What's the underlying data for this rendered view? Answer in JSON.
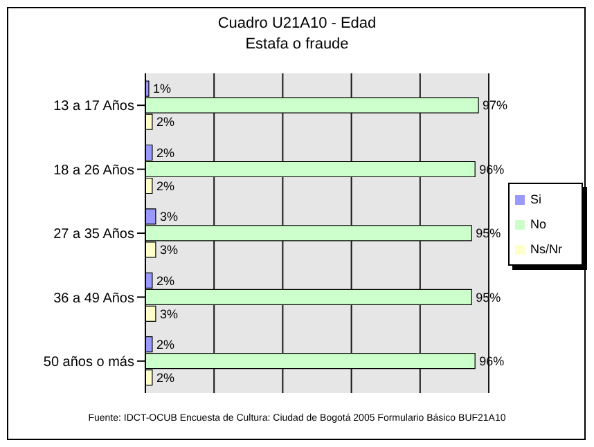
{
  "chart_data": {
    "type": "bar",
    "orientation": "horizontal",
    "title": "Cuadro U21A10 - Edad",
    "subtitle": "Estafa o fraude",
    "categories": [
      "13 a 17 Años",
      "18 a 26 Años",
      "27 a 35 Años",
      "36 a 49 Años",
      "50 años o más"
    ],
    "series": [
      {
        "name": "Si",
        "color": "#9999ff",
        "values": [
          1,
          2,
          3,
          2,
          2
        ],
        "value_labels": [
          "1%",
          "2%",
          "3%",
          "2%",
          "2%"
        ]
      },
      {
        "name": "No",
        "color": "#ccffcc",
        "values": [
          97,
          96,
          95,
          95,
          96
        ],
        "value_labels": [
          "97%",
          "96%",
          "95%",
          "95%",
          "96%"
        ]
      },
      {
        "name": "Ns/Nr",
        "color": "#ffffcc",
        "values": [
          2,
          2,
          3,
          3,
          2
        ],
        "value_labels": [
          "2%",
          "2%",
          "3%",
          "3%",
          "2%"
        ]
      }
    ],
    "xlim": [
      0,
      100
    ],
    "xticks": [
      {
        "value": 0,
        "label": null
      },
      {
        "value": 20,
        "label": null
      },
      {
        "value": 40,
        "label": null
      },
      {
        "value": 60,
        "label": null
      },
      {
        "value": 80,
        "label": null
      },
      {
        "value": 100,
        "label": null
      }
    ],
    "grid": "x",
    "legend": "right",
    "annotations": [
      "Fuente: IDCT-OCUB Encuesta de Cultura: Ciudad de Bogotá 2005 Formulario Básico BUF21A10"
    ]
  }
}
